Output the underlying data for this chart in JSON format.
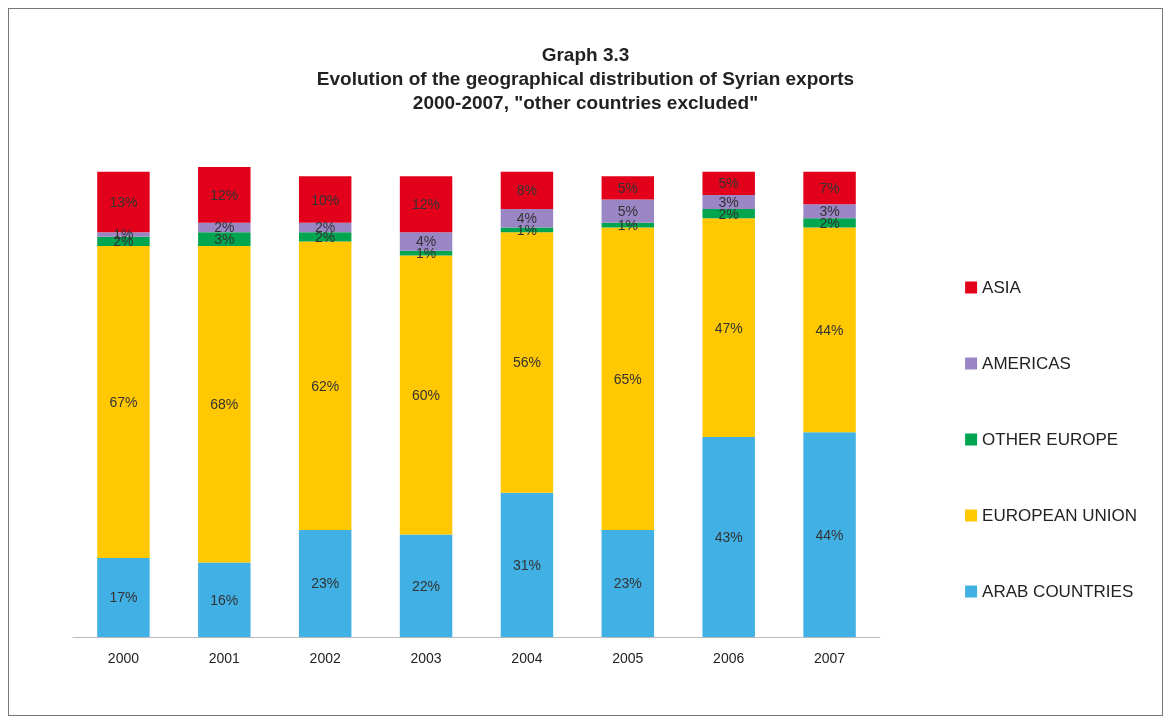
{
  "chart_data": {
    "type": "bar",
    "title": "Graph 3.3\nEvolution of the geographical distribution of Syrian exports\n2000-2007, \"other countries excluded\"",
    "stacked": true,
    "legend": "right",
    "grid": false,
    "categories": [
      "2000",
      "2001",
      "2002",
      "2003",
      "2004",
      "2005",
      "2006",
      "2007"
    ],
    "series": [
      {
        "name": "ARAB COUNTRIES",
        "color": "#41b0e4",
        "values": [
          17,
          16,
          23,
          22,
          31,
          23,
          43,
          44
        ],
        "value_labels": [
          "17%",
          "16%",
          "23%",
          "22%",
          "31%",
          "23%",
          "43%",
          "44%"
        ]
      },
      {
        "name": "EUROPEAN UNION",
        "color": "#ffc800",
        "values": [
          67,
          68,
          62,
          60,
          56,
          65,
          47,
          44
        ],
        "value_labels": [
          "67%",
          "68%",
          "62%",
          "60%",
          "56%",
          "65%",
          "47%",
          "44%"
        ]
      },
      {
        "name": "OTHER EUROPE",
        "color": "#00a550",
        "values": [
          2,
          3,
          2,
          1,
          1,
          1,
          2,
          2
        ],
        "value_labels": [
          "2%",
          "3%",
          "2%",
          "1%",
          "1%",
          "1%",
          "2%",
          "2%"
        ]
      },
      {
        "name": "AMERICAS",
        "color": "#9a86c4",
        "values": [
          1,
          2,
          2,
          4,
          4,
          5,
          3,
          3
        ],
        "value_labels": [
          "1%",
          "2%",
          "2%",
          "4%",
          "4%",
          "5%",
          "3%",
          "3%"
        ]
      },
      {
        "name": "ASIA",
        "color": "#e2001a",
        "values": [
          13,
          12,
          10,
          12,
          8,
          5,
          5,
          7
        ],
        "value_labels": [
          "13%",
          "12%",
          "10%",
          "12%",
          "8%",
          "5%",
          "5%",
          "7%"
        ]
      }
    ]
  }
}
